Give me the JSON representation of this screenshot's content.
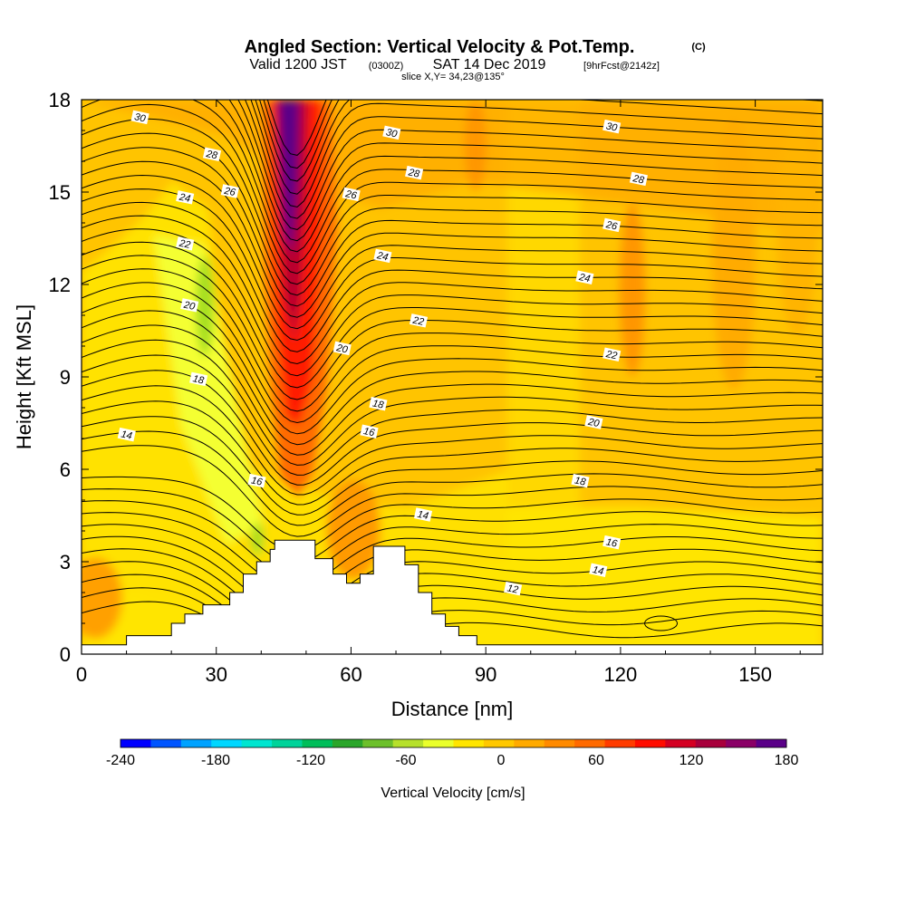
{
  "chart_data": {
    "type": "heatmap",
    "title": "Angled Section: Vertical Velocity & Pot.Temp.",
    "title_suffix": "(C)",
    "subtitle": {
      "valid": "Valid 1200 JST",
      "zulu": "(0300Z)",
      "date": "SAT 14 Dec 2019",
      "forecast": "[9hrFcst@2142z]"
    },
    "slice_note": "slice X,Y= 34,23@135°",
    "xlabel": "Distance [nm]",
    "ylabel": "Height [Kft MSL]",
    "xlim": [
      0,
      165
    ],
    "ylim": [
      0,
      18
    ],
    "x_ticks": [
      "0",
      "30",
      "60",
      "90",
      "120",
      "150"
    ],
    "x_tick_values": [
      0,
      30,
      60,
      90,
      120,
      150
    ],
    "y_ticks": [
      "0",
      "3",
      "6",
      "9",
      "12",
      "15",
      "18"
    ],
    "y_tick_values": [
      0,
      3,
      6,
      9,
      12,
      15,
      18
    ],
    "colorbar": {
      "label": "Vertical Velocity [cm/s]",
      "range": [
        -240,
        180
      ],
      "tick_labels": [
        "-240",
        "-180",
        "-120",
        "-60",
        "0",
        "60",
        "120",
        "180"
      ],
      "tick_values": [
        -240,
        -180,
        -120,
        -60,
        0,
        60,
        120,
        180
      ],
      "colors": [
        "#0000ff",
        "#0055ff",
        "#00a2ff",
        "#00d7ff",
        "#00e6d0",
        "#00d39a",
        "#00be5a",
        "#2aa62a",
        "#6cc02a",
        "#b6e02a",
        "#eaff2a",
        "#ffe500",
        "#ffc800",
        "#ffaa00",
        "#ff8a00",
        "#ff6a00",
        "#ff3c00",
        "#ff0d00",
        "#d40022",
        "#a8003c",
        "#8a0066",
        "#5a0088"
      ]
    },
    "terrain_kft": [
      [
        0,
        0.3
      ],
      [
        10,
        0.3
      ],
      [
        10,
        0.6
      ],
      [
        20,
        0.6
      ],
      [
        20,
        1.0
      ],
      [
        23,
        1.0
      ],
      [
        23,
        1.3
      ],
      [
        27,
        1.3
      ],
      [
        27,
        1.6
      ],
      [
        33,
        1.6
      ],
      [
        33,
        2.0
      ],
      [
        36,
        2.0
      ],
      [
        36,
        2.6
      ],
      [
        39,
        2.6
      ],
      [
        39,
        3.0
      ],
      [
        42,
        3.0
      ],
      [
        42,
        3.4
      ],
      [
        43,
        3.4
      ],
      [
        43,
        3.7
      ],
      [
        52,
        3.7
      ],
      [
        52,
        3.1
      ],
      [
        56,
        3.1
      ],
      [
        56,
        2.6
      ],
      [
        59,
        2.6
      ],
      [
        59,
        2.3
      ],
      [
        62,
        2.3
      ],
      [
        62,
        2.6
      ],
      [
        65,
        2.6
      ],
      [
        65,
        3.5
      ],
      [
        72,
        3.5
      ],
      [
        72,
        2.9
      ],
      [
        75,
        2.9
      ],
      [
        75,
        2.0
      ],
      [
        78,
        2.0
      ],
      [
        78,
        1.3
      ],
      [
        81,
        1.3
      ],
      [
        81,
        0.9
      ],
      [
        84,
        0.9
      ],
      [
        84,
        0.6
      ],
      [
        88,
        0.6
      ],
      [
        88,
        0.3
      ],
      [
        165,
        0.3
      ]
    ],
    "theta_contour_labels": [
      {
        "text": "30",
        "x": 13,
        "y": 17.4
      },
      {
        "text": "28",
        "x": 29,
        "y": 16.2
      },
      {
        "text": "26",
        "x": 33,
        "y": 15.0
      },
      {
        "text": "24",
        "x": 23,
        "y": 14.8
      },
      {
        "text": "22",
        "x": 23,
        "y": 13.3
      },
      {
        "text": "20",
        "x": 24,
        "y": 11.3
      },
      {
        "text": "18",
        "x": 26,
        "y": 8.9
      },
      {
        "text": "14",
        "x": 10,
        "y": 7.1
      },
      {
        "text": "16",
        "x": 39,
        "y": 5.6
      },
      {
        "text": "30",
        "x": 69,
        "y": 16.9
      },
      {
        "text": "28",
        "x": 74,
        "y": 15.6
      },
      {
        "text": "26",
        "x": 60,
        "y": 14.9
      },
      {
        "text": "24",
        "x": 67,
        "y": 12.9
      },
      {
        "text": "22",
        "x": 75,
        "y": 10.8
      },
      {
        "text": "20",
        "x": 58,
        "y": 9.9
      },
      {
        "text": "18",
        "x": 66,
        "y": 8.1
      },
      {
        "text": "16",
        "x": 64,
        "y": 7.2
      },
      {
        "text": "14",
        "x": 76,
        "y": 4.5
      },
      {
        "text": "30",
        "x": 118,
        "y": 17.1
      },
      {
        "text": "28",
        "x": 124,
        "y": 15.4
      },
      {
        "text": "26",
        "x": 118,
        "y": 13.9
      },
      {
        "text": "24",
        "x": 112,
        "y": 12.2
      },
      {
        "text": "22",
        "x": 118,
        "y": 9.7
      },
      {
        "text": "20",
        "x": 114,
        "y": 7.5
      },
      {
        "text": "18",
        "x": 111,
        "y": 5.6
      },
      {
        "text": "16",
        "x": 118,
        "y": 3.6
      },
      {
        "text": "14",
        "x": 115,
        "y": 2.7
      },
      {
        "text": "12",
        "x": 96,
        "y": 2.1
      }
    ]
  }
}
